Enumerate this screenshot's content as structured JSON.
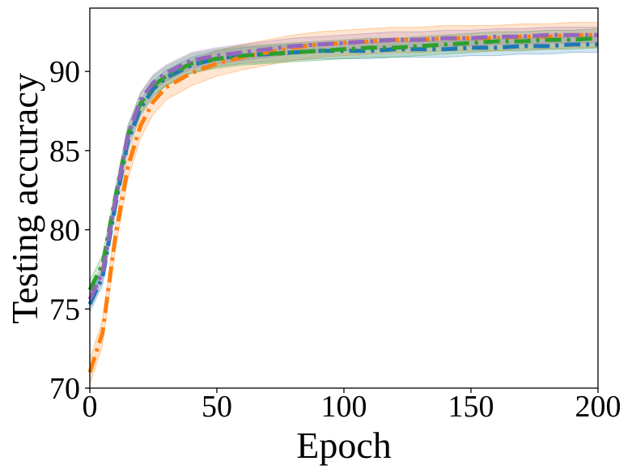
{
  "chart_data": {
    "type": "line",
    "title": "",
    "xlabel": "Epoch",
    "ylabel": "Testing accuracy",
    "xlim": [
      0,
      200
    ],
    "ylim": [
      70,
      94
    ],
    "xticks": [
      0,
      50,
      100,
      150,
      200
    ],
    "xtick_labels": [
      "0",
      "50",
      "100",
      "150",
      "200"
    ],
    "yticks": [
      70,
      75,
      80,
      85,
      90
    ],
    "ytick_labels": [
      "70",
      "75",
      "80",
      "85",
      "90"
    ],
    "grid": false,
    "legend": "none",
    "x": [
      0,
      5,
      10,
      15,
      20,
      25,
      30,
      40,
      50,
      60,
      70,
      80,
      90,
      100,
      110,
      120,
      130,
      140,
      150,
      160,
      170,
      180,
      190,
      200
    ],
    "series": [
      {
        "color": "#1f77b4",
        "band": 0.5,
        "values": [
          75.3,
          77.0,
          81.5,
          85.6,
          87.7,
          88.9,
          89.6,
          90.4,
          90.8,
          91.0,
          91.1,
          91.2,
          91.3,
          91.3,
          91.3,
          91.4,
          91.4,
          91.4,
          91.5,
          91.5,
          91.6,
          91.6,
          91.7,
          91.7
        ]
      },
      {
        "color": "#ff7f0e",
        "band": 0.8,
        "values": [
          71.0,
          73.5,
          79.5,
          84.0,
          86.6,
          88.1,
          89.0,
          89.9,
          90.5,
          90.9,
          91.2,
          91.5,
          91.7,
          91.8,
          91.9,
          92.0,
          92.0,
          92.1,
          92.1,
          92.1,
          92.2,
          92.2,
          92.3,
          92.3
        ]
      },
      {
        "color": "#2ca02c",
        "band": 0.6,
        "values": [
          76.2,
          77.8,
          82.0,
          86.0,
          88.0,
          89.1,
          89.7,
          90.5,
          90.8,
          91.0,
          91.1,
          91.2,
          91.3,
          91.4,
          91.5,
          91.5,
          91.6,
          91.7,
          91.8,
          91.9,
          91.9,
          92.0,
          92.0,
          92.1
        ]
      },
      {
        "color": "#9467bd",
        "band": 0.5,
        "values": [
          75.6,
          77.3,
          81.8,
          86.0,
          88.2,
          89.3,
          89.9,
          90.7,
          91.0,
          91.2,
          91.4,
          91.6,
          91.7,
          91.8,
          91.9,
          92.0,
          92.0,
          92.1,
          92.1,
          92.2,
          92.2,
          92.3,
          92.3,
          92.3
        ]
      }
    ]
  }
}
